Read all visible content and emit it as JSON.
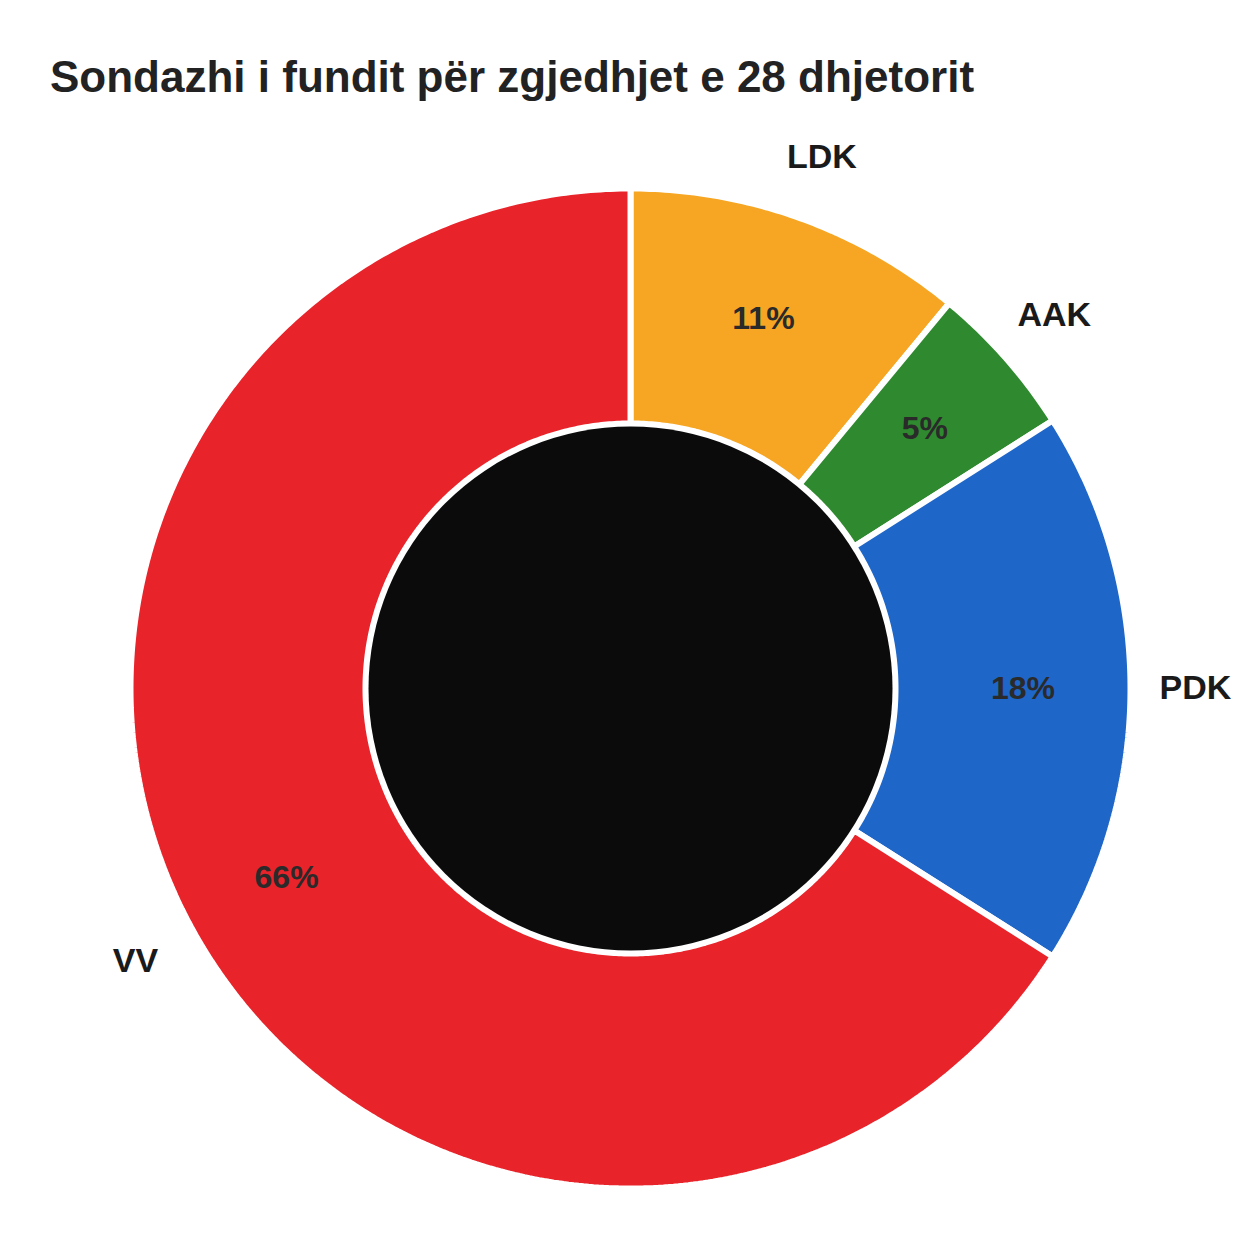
{
  "chart_data": {
    "type": "donut",
    "title": "Sondazhi i fundit për zgjedhjet e 28 dhjetorit",
    "categories": [
      "LDK",
      "AAK",
      "PDK",
      "VV"
    ],
    "values": [
      11,
      5,
      18,
      66
    ],
    "value_labels": [
      "11%",
      "5%",
      "18%",
      "66%"
    ],
    "colors": [
      "#f6a623",
      "#2f8a2f",
      "#1f66c9",
      "#e8232a"
    ],
    "data_labels": true,
    "tick_labels": false
  }
}
